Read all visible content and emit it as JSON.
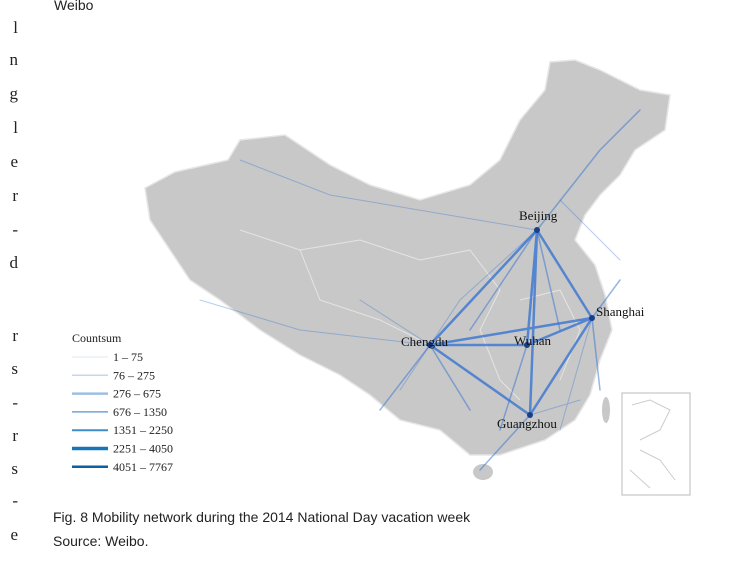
{
  "top_text": "Weibo",
  "margin_text": [
    "l",
    "n",
    "g",
    "l",
    "e",
    "r",
    "-",
    "d",
    "r",
    "s",
    "-",
    "r",
    "s",
    "-",
    "e"
  ],
  "map": {
    "cities": [
      {
        "label": "Beijing"
      },
      {
        "label": "Shanghai"
      },
      {
        "label": "Chengdu"
      },
      {
        "label": "Wuhan"
      },
      {
        "label": "Guangzhou"
      }
    ],
    "legend": {
      "title": "Countsum",
      "items": [
        {
          "label": "1 – 75",
          "color": "#dfe8f3"
        },
        {
          "label": "76 – 275",
          "color": "#c4d7ee"
        },
        {
          "label": "276 – 675",
          "color": "#9fbfe2"
        },
        {
          "label": "676 – 1350",
          "color": "#6fa3d6"
        },
        {
          "label": "1351 – 2250",
          "color": "#3d8dc9"
        },
        {
          "label": "2251 – 4050",
          "color": "#1577b8"
        },
        {
          "label": "4051 – 7767",
          "color": "#0b5fa3"
        }
      ]
    }
  },
  "caption": {
    "line1": "Fig. 8 Mobility network during the 2014 National Day vacation week",
    "line2": "Source: Weibo."
  }
}
